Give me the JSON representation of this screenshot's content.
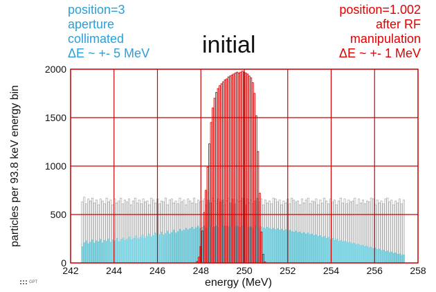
{
  "annotations": {
    "left": [
      "position=3",
      "aperture",
      "collimated",
      "ΔE ~ +- 5 MeV"
    ],
    "right": [
      "position=1.002",
      "after RF",
      "manipulation",
      "ΔE ~ +- 1 MeV"
    ],
    "left_color": "#2a9fd6",
    "right_color": "#e00000"
  },
  "logo_text": "GPT",
  "chart_data": {
    "type": "bar",
    "title": "initial",
    "xlabel": "energy (MeV)",
    "ylabel": "particles per 93.8 keV energy bin",
    "xlim": [
      242,
      258
    ],
    "ylim": [
      0,
      2000
    ],
    "xticks": [
      242,
      244,
      246,
      248,
      250,
      252,
      254,
      256,
      258
    ],
    "yticks": [
      0,
      500,
      1000,
      1500,
      2000
    ],
    "grid": true,
    "grid_color": "#cc0000",
    "bin_width": 0.0938,
    "series": [
      {
        "name": "initial",
        "style": "outline",
        "color": "#9a9a9a",
        "x_start": 242.5,
        "x_end": 257.4,
        "values": [
          630,
          680,
          610,
          660,
          640,
          670,
          620,
          650,
          600,
          660,
          640,
          610,
          670,
          630,
          650,
          600,
          660,
          620,
          640,
          670,
          610,
          650,
          630,
          660,
          600,
          640,
          670,
          620,
          650,
          610,
          660,
          630,
          640,
          600,
          670,
          650,
          620,
          660,
          610,
          640,
          630,
          670,
          600,
          650,
          660,
          620,
          640,
          610,
          670,
          630,
          650,
          600,
          660,
          640,
          620,
          670,
          610,
          650,
          630,
          640,
          660,
          600,
          650,
          620,
          670,
          640,
          610,
          660,
          630,
          650,
          600,
          640,
          670,
          620,
          660,
          610,
          650,
          630,
          640,
          670,
          600,
          660,
          620,
          650,
          610,
          640,
          670,
          630,
          660,
          600,
          650,
          620,
          640,
          610,
          670,
          660,
          630,
          650,
          600,
          640,
          620,
          660,
          610,
          670,
          650,
          630,
          640,
          600,
          660,
          620,
          650,
          670,
          610,
          640,
          630,
          660,
          600,
          650,
          620,
          670,
          640,
          610,
          660,
          630,
          650,
          600,
          640,
          670,
          620,
          660,
          610,
          650,
          630,
          640,
          670,
          600,
          660,
          620,
          650,
          610,
          640,
          630,
          670,
          660,
          600,
          650,
          620,
          640,
          610,
          660,
          670,
          630,
          650,
          600,
          640,
          620,
          660,
          610,
          650
        ]
      },
      {
        "name": "aperture collimated",
        "style": "filled",
        "color": "#7fd8e6",
        "x_start": 242.5,
        "x_end": 257.4,
        "values": [
          170,
          210,
          230,
          200,
          215,
          240,
          205,
          230,
          220,
          245,
          210,
          235,
          225,
          250,
          215,
          240,
          230,
          255,
          220,
          245,
          260,
          235,
          250,
          270,
          240,
          255,
          280,
          250,
          265,
          290,
          255,
          275,
          300,
          270,
          285,
          310,
          280,
          295,
          320,
          290,
          305,
          330,
          300,
          315,
          340,
          310,
          325,
          350,
          330,
          340,
          360,
          345,
          355,
          370,
          350,
          365,
          380,
          360,
          370,
          385,
          365,
          375,
          380,
          370,
          375,
          385,
          370,
          380,
          375,
          385,
          380,
          375,
          380,
          385,
          375,
          380,
          370,
          385,
          375,
          380,
          370,
          375,
          365,
          380,
          370,
          360,
          375,
          365,
          355,
          370,
          360,
          350,
          360,
          345,
          355,
          340,
          350,
          335,
          345,
          330,
          340,
          325,
          320,
          330,
          315,
          320,
          305,
          315,
          300,
          310,
          295,
          300,
          285,
          290,
          275,
          285,
          265,
          275,
          255,
          265,
          245,
          255,
          235,
          245,
          225,
          235,
          220,
          225,
          210,
          215,
          200,
          205,
          190,
          195,
          180,
          185,
          170,
          175,
          160,
          165,
          150,
          155,
          140,
          145,
          130,
          135,
          120,
          125,
          110,
          115,
          100,
          105,
          90,
          95,
          80,
          85
        ]
      },
      {
        "name": "after RF manipulation",
        "style": "outline",
        "color": "#dd0000",
        "x_start": 247.8,
        "x_end": 251.0,
        "values": [
          15,
          60,
          170,
          330,
          520,
          750,
          990,
          1230,
          1450,
          1600,
          1700,
          1760,
          1800,
          1830,
          1850,
          1870,
          1890,
          1900,
          1920,
          1930,
          1940,
          1950,
          1960,
          1970,
          1960,
          1970,
          1980,
          1970,
          1960,
          1950,
          1930,
          1910,
          1860,
          1750,
          1520,
          1150,
          720,
          320,
          90,
          10
        ]
      }
    ]
  }
}
